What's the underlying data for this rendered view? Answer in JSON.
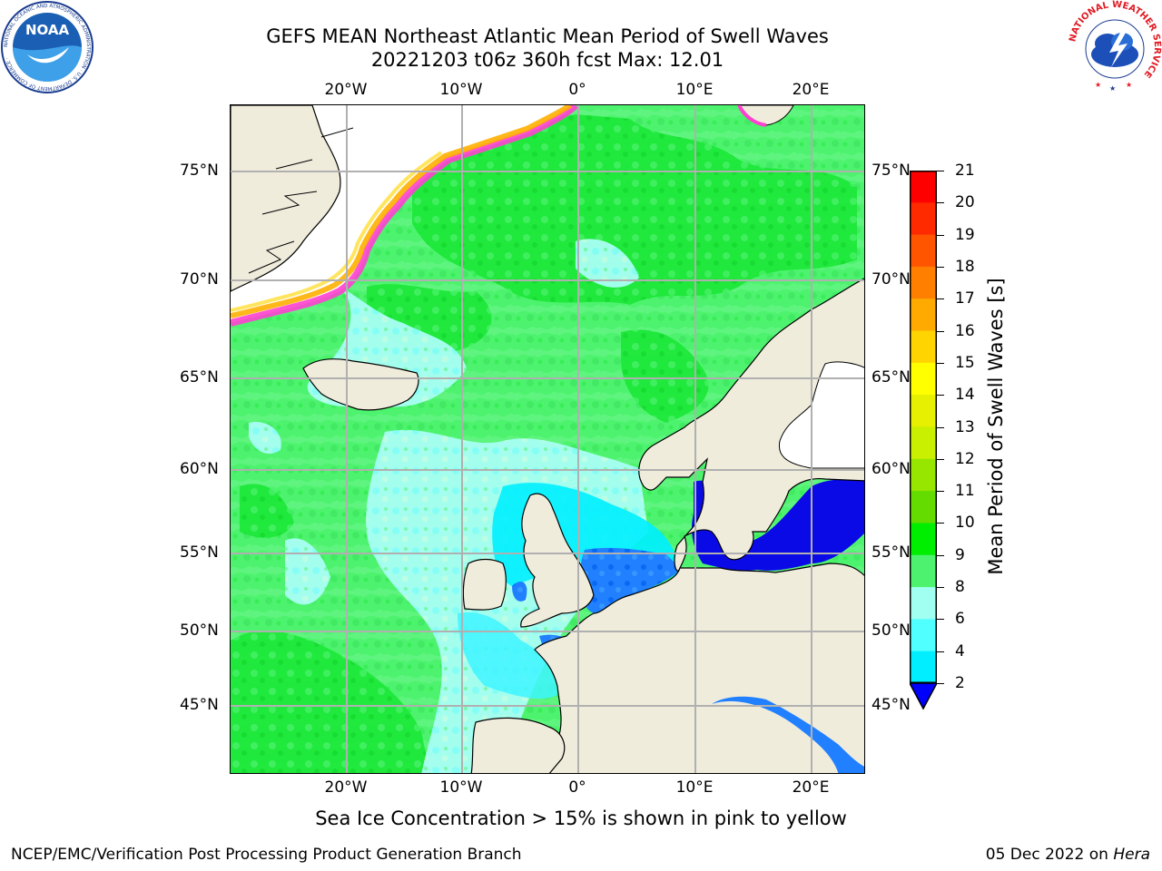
{
  "header": {
    "title_line1": "GEFS MEAN Northeast Atlantic Mean Period of Swell Waves",
    "title_line2": "20221203 t06z 360h fcst   Max: 12.01"
  },
  "logos": {
    "left": "NOAA",
    "left_ring": "NATIONAL OCEANIC AND ATMOSPHERIC ADMINISTRATION · U.S. DEPARTMENT OF COMMERCE ·",
    "right_ring": "NATIONAL WEATHER SERVICE"
  },
  "axes": {
    "lon_labels": [
      "20°W",
      "10°W",
      "0°",
      "10°E",
      "20°E"
    ],
    "lat_labels": [
      "75°N",
      "70°N",
      "65°N",
      "60°N",
      "55°N",
      "50°N",
      "45°N"
    ]
  },
  "colorbar": {
    "title": "Mean Period of Swell Waves [s]",
    "labels": [
      "21",
      "20",
      "19",
      "18",
      "17",
      "16",
      "15",
      "14",
      "13",
      "12",
      "11",
      "10",
      "9",
      "8",
      "6",
      "4",
      "2"
    ],
    "colors": [
      "#ff0000",
      "#ff2a00",
      "#ff5500",
      "#ff8000",
      "#ffaa00",
      "#ffd400",
      "#ffff00",
      "#e6f000",
      "#c8f000",
      "#96e600",
      "#64dc00",
      "#00ee00",
      "#4df36e",
      "#a0fff0",
      "#50ffff",
      "#00eeff",
      "#0080ff"
    ],
    "extend_color": "#0000ff"
  },
  "map_colors": {
    "land": "#efecdc",
    "sea_ice_white": "#ffffff",
    "baltic": "#0a0ae6",
    "green": "#4df36e",
    "bright_green": "#22e822",
    "cyan": "#80ffff",
    "light_cyan": "#a8fff4",
    "blue": "#2080ff"
  },
  "footer": {
    "note": "Sea Ice Concentration > 15% is shown in pink to yellow",
    "credit": "NCEP/EMC/Verification Post Processing Product Generation Branch",
    "date": "05 Dec 2022 on ",
    "machine": "Hera"
  }
}
